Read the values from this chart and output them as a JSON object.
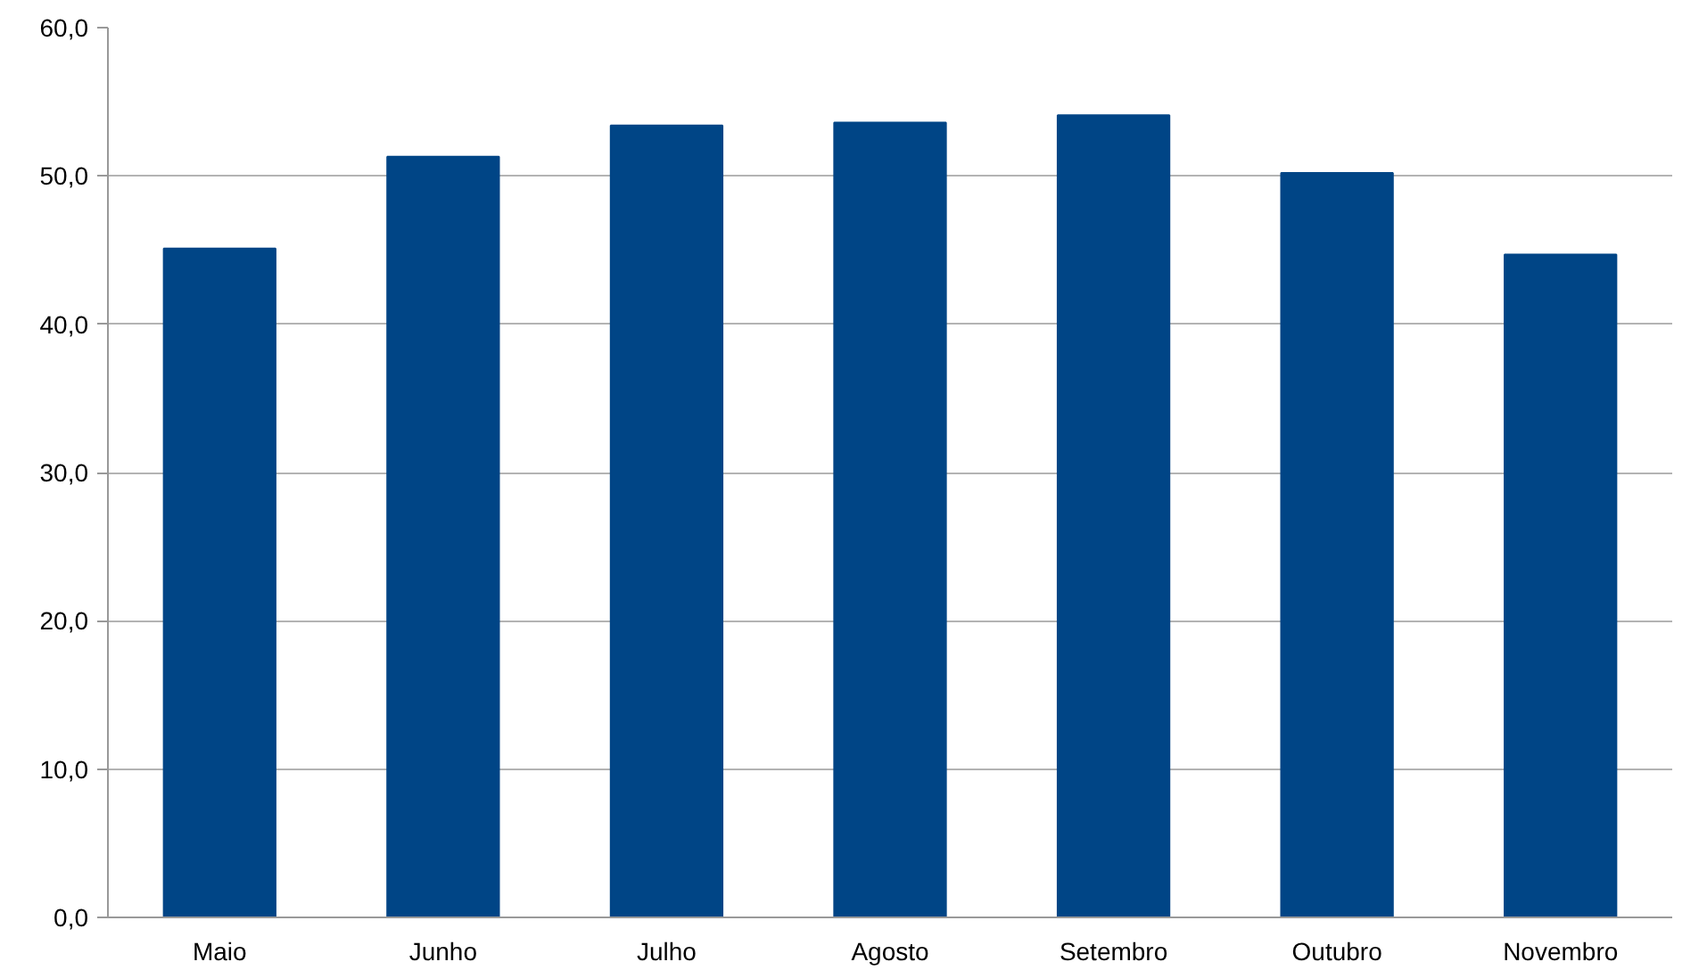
{
  "chart_data": {
    "type": "bar",
    "categories": [
      "Maio",
      "Junho",
      "Julho",
      "Agosto",
      "Setembro",
      "Outubro",
      "Novembro"
    ],
    "values": [
      45.1,
      51.3,
      53.4,
      53.6,
      54.1,
      50.2,
      44.7
    ],
    "color": "#004586",
    "ylim": [
      0,
      60
    ],
    "yticks": [
      {
        "value": 0,
        "label": "0,0"
      },
      {
        "value": 10,
        "label": "10,0"
      },
      {
        "value": 20,
        "label": "20,0"
      },
      {
        "value": 30,
        "label": "30,0"
      },
      {
        "value": 40,
        "label": "40,0"
      },
      {
        "value": 50,
        "label": "50,0"
      },
      {
        "value": 60,
        "label": "60,0"
      }
    ],
    "grid": "y"
  }
}
